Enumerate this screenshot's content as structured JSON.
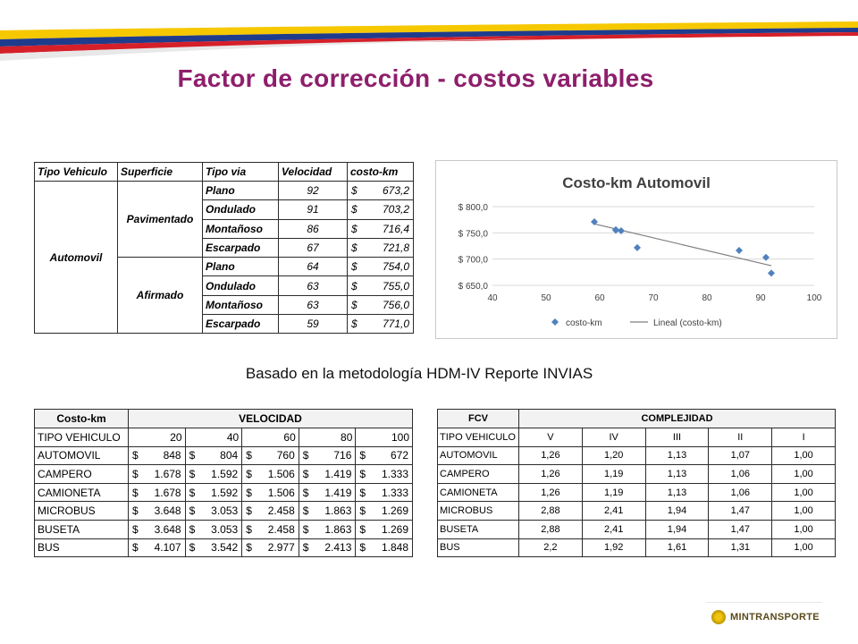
{
  "title": "Factor de corrección - costos variables",
  "note": "Basado en la metodología HDM-IV Reporte INVIAS",
  "colors": {
    "title": "#8e1e6c",
    "flag_yellow": "#f6c800",
    "flag_blue": "#1f3c8c",
    "flag_red": "#d5202a",
    "series": "#4f81bd"
  },
  "logo": {
    "text": "MINTRANSPORTE",
    "icon": "coat-of-arms-icon"
  },
  "table1": {
    "headers": [
      "Tipo Vehiculo",
      "Superficie",
      "Tipo via",
      "Velocidad",
      "costo-km"
    ],
    "vehicle": "Automovil",
    "surfaces": [
      "Pavimentado",
      "Afirmado"
    ],
    "currency": "$",
    "rows": [
      {
        "via": "Plano",
        "vel": "92",
        "cost": "673,2"
      },
      {
        "via": "Ondulado",
        "vel": "91",
        "cost": "703,2"
      },
      {
        "via": "Montañoso",
        "vel": "86",
        "cost": "716,4"
      },
      {
        "via": "Escarpado",
        "vel": "67",
        "cost": "721,8"
      },
      {
        "via": "Plano",
        "vel": "64",
        "cost": "754,0"
      },
      {
        "via": "Ondulado",
        "vel": "63",
        "cost": "755,0"
      },
      {
        "via": "Montañoso",
        "vel": "63",
        "cost": "756,0"
      },
      {
        "via": "Escarpado",
        "vel": "59",
        "cost": "771,0"
      }
    ]
  },
  "chart_data": {
    "type": "scatter",
    "title": "Costo-km Automovil",
    "x": [
      92,
      91,
      86,
      67,
      64,
      63,
      63,
      59
    ],
    "y": [
      673.2,
      703.2,
      716.4,
      721.8,
      754.0,
      755.0,
      756.0,
      771.0
    ],
    "xlim": [
      40,
      100
    ],
    "ylim": [
      650,
      800
    ],
    "xticks": [
      "40",
      "50",
      "60",
      "70",
      "80",
      "90",
      "100"
    ],
    "yticks": [
      "$ 650,0",
      "$ 700,0",
      "$ 750,0",
      "$ 800,0"
    ],
    "trendline": {
      "x": [
        59,
        92
      ],
      "y": [
        767.1,
        687.4
      ]
    },
    "legend": [
      "costo-km",
      "Lineal (costo-km)"
    ],
    "legend_position": "bottom"
  },
  "table2": {
    "corner": "Costo-km",
    "group": "VELOCIDAD",
    "subhead": [
      "TIPO VEHICULO",
      "20",
      "40",
      "60",
      "80",
      "100"
    ],
    "currency": "$",
    "rows": [
      {
        "name": "AUTOMOVIL",
        "values": [
          "848",
          "804",
          "760",
          "716",
          "672"
        ]
      },
      {
        "name": "CAMPERO",
        "values": [
          "1.678",
          "1.592",
          "1.506",
          "1.419",
          "1.333"
        ]
      },
      {
        "name": "CAMIONETA",
        "values": [
          "1.678",
          "1.592",
          "1.506",
          "1.419",
          "1.333"
        ]
      },
      {
        "name": "MICROBUS",
        "values": [
          "3.648",
          "3.053",
          "2.458",
          "1.863",
          "1.269"
        ]
      },
      {
        "name": "BUSETA",
        "values": [
          "3.648",
          "3.053",
          "2.458",
          "1.863",
          "1.269"
        ]
      },
      {
        "name": "BUS",
        "values": [
          "4.107",
          "3.542",
          "2.977",
          "2.413",
          "1.848"
        ]
      }
    ]
  },
  "table3": {
    "corner": "FCV",
    "group": "COMPLEJIDAD",
    "subhead": [
      "TIPO VEHICULO",
      "V",
      "IV",
      "III",
      "II",
      "I"
    ],
    "rows": [
      {
        "name": "AUTOMOVIL",
        "values": [
          "1,26",
          "1,20",
          "1,13",
          "1,07",
          "1,00"
        ]
      },
      {
        "name": "CAMPERO",
        "values": [
          "1,26",
          "1,19",
          "1,13",
          "1,06",
          "1,00"
        ]
      },
      {
        "name": "CAMIONETA",
        "values": [
          "1,26",
          "1,19",
          "1,13",
          "1,06",
          "1,00"
        ]
      },
      {
        "name": "MICROBUS",
        "values": [
          "2,88",
          "2,41",
          "1,94",
          "1,47",
          "1,00"
        ]
      },
      {
        "name": "BUSETA",
        "values": [
          "2,88",
          "2,41",
          "1,94",
          "1,47",
          "1,00"
        ]
      },
      {
        "name": "BUS",
        "values": [
          "2,2",
          "1,92",
          "1,61",
          "1,31",
          "1,00"
        ]
      }
    ]
  }
}
